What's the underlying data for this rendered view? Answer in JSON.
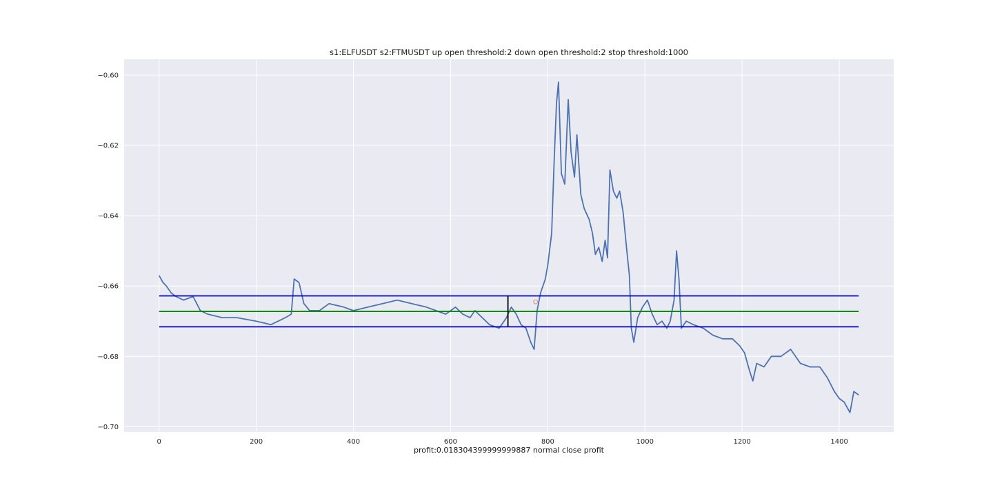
{
  "figure": {
    "background": "#ffffff",
    "axes_background": "#eaeaf2",
    "grid_color": "#ffffff"
  },
  "chart_data": {
    "type": "line",
    "title": "s1:ELFUSDT s2:FTMUSDT up open threshold:2 down open threshold:2 stop threshold:1000",
    "xlabel": "profit:0.018304399999999887 normal close profit",
    "ylabel": "",
    "xlim": [
      -72,
      1512
    ],
    "ylim": [
      -0.7015,
      -0.5955
    ],
    "grid": true,
    "xticks": [
      0,
      200,
      400,
      600,
      800,
      1000,
      1200,
      1400
    ],
    "xtick_labels": [
      "0",
      "200",
      "400",
      "600",
      "800",
      "1000",
      "1200",
      "1400"
    ],
    "yticks": [
      -0.7,
      -0.68,
      -0.66,
      -0.64,
      -0.62,
      -0.6
    ],
    "ytick_labels": [
      "−0.70",
      "−0.68",
      "−0.66",
      "−0.64",
      "−0.62",
      "−0.60"
    ],
    "series": [
      {
        "color": "#4c72b0",
        "points": [
          [
            0,
            -0.657
          ],
          [
            8,
            -0.659
          ],
          [
            15,
            -0.66
          ],
          [
            25,
            -0.662
          ],
          [
            35,
            -0.663
          ],
          [
            50,
            -0.664
          ],
          [
            70,
            -0.663
          ],
          [
            85,
            -0.667
          ],
          [
            100,
            -0.668
          ],
          [
            130,
            -0.669
          ],
          [
            160,
            -0.669
          ],
          [
            200,
            -0.67
          ],
          [
            230,
            -0.671
          ],
          [
            260,
            -0.669
          ],
          [
            272,
            -0.668
          ],
          [
            278,
            -0.658
          ],
          [
            288,
            -0.659
          ],
          [
            298,
            -0.665
          ],
          [
            310,
            -0.667
          ],
          [
            330,
            -0.667
          ],
          [
            350,
            -0.665
          ],
          [
            380,
            -0.666
          ],
          [
            400,
            -0.667
          ],
          [
            430,
            -0.666
          ],
          [
            460,
            -0.665
          ],
          [
            490,
            -0.664
          ],
          [
            520,
            -0.665
          ],
          [
            550,
            -0.666
          ],
          [
            570,
            -0.667
          ],
          [
            590,
            -0.668
          ],
          [
            610,
            -0.666
          ],
          [
            625,
            -0.668
          ],
          [
            640,
            -0.669
          ],
          [
            650,
            -0.667
          ],
          [
            665,
            -0.669
          ],
          [
            680,
            -0.671
          ],
          [
            700,
            -0.672
          ],
          [
            715,
            -0.669
          ],
          [
            725,
            -0.666
          ],
          [
            735,
            -0.668
          ],
          [
            745,
            -0.671
          ],
          [
            755,
            -0.672
          ],
          [
            765,
            -0.676
          ],
          [
            772,
            -0.678
          ],
          [
            778,
            -0.667
          ],
          [
            785,
            -0.662
          ],
          [
            795,
            -0.658
          ],
          [
            800,
            -0.654
          ],
          [
            808,
            -0.645
          ],
          [
            813,
            -0.625
          ],
          [
            818,
            -0.608
          ],
          [
            822,
            -0.602
          ],
          [
            828,
            -0.628
          ],
          [
            835,
            -0.631
          ],
          [
            842,
            -0.607
          ],
          [
            848,
            -0.622
          ],
          [
            855,
            -0.629
          ],
          [
            860,
            -0.617
          ],
          [
            868,
            -0.634
          ],
          [
            875,
            -0.638
          ],
          [
            885,
            -0.641
          ],
          [
            892,
            -0.645
          ],
          [
            898,
            -0.651
          ],
          [
            905,
            -0.649
          ],
          [
            912,
            -0.653
          ],
          [
            918,
            -0.647
          ],
          [
            923,
            -0.652
          ],
          [
            928,
            -0.627
          ],
          [
            935,
            -0.633
          ],
          [
            942,
            -0.635
          ],
          [
            948,
            -0.633
          ],
          [
            955,
            -0.639
          ],
          [
            962,
            -0.649
          ],
          [
            968,
            -0.657
          ],
          [
            972,
            -0.672
          ],
          [
            977,
            -0.676
          ],
          [
            985,
            -0.669
          ],
          [
            995,
            -0.666
          ],
          [
            1005,
            -0.664
          ],
          [
            1015,
            -0.668
          ],
          [
            1025,
            -0.671
          ],
          [
            1035,
            -0.67
          ],
          [
            1045,
            -0.672
          ],
          [
            1052,
            -0.67
          ],
          [
            1060,
            -0.664
          ],
          [
            1065,
            -0.65
          ],
          [
            1070,
            -0.658
          ],
          [
            1075,
            -0.672
          ],
          [
            1085,
            -0.67
          ],
          [
            1100,
            -0.671
          ],
          [
            1120,
            -0.672
          ],
          [
            1140,
            -0.674
          ],
          [
            1160,
            -0.675
          ],
          [
            1180,
            -0.675
          ],
          [
            1195,
            -0.677
          ],
          [
            1205,
            -0.679
          ],
          [
            1215,
            -0.684
          ],
          [
            1222,
            -0.687
          ],
          [
            1230,
            -0.682
          ],
          [
            1245,
            -0.683
          ],
          [
            1260,
            -0.68
          ],
          [
            1280,
            -0.68
          ],
          [
            1300,
            -0.678
          ],
          [
            1320,
            -0.682
          ],
          [
            1340,
            -0.683
          ],
          [
            1360,
            -0.683
          ],
          [
            1375,
            -0.686
          ],
          [
            1390,
            -0.69
          ],
          [
            1400,
            -0.692
          ],
          [
            1410,
            -0.693
          ],
          [
            1422,
            -0.696
          ],
          [
            1430,
            -0.69
          ],
          [
            1440,
            -0.691
          ]
        ]
      }
    ],
    "reference_lines": [
      {
        "y": -0.6628,
        "x_range": [
          0,
          1440
        ],
        "color": "#0000cc"
      },
      {
        "y": -0.6672,
        "x_range": [
          0,
          1440
        ],
        "color": "#008000"
      },
      {
        "y": -0.6716,
        "x_range": [
          0,
          1440
        ],
        "color": "#0000cc"
      }
    ],
    "vertical_markers": [
      {
        "x": 718,
        "y_range": [
          -0.6715,
          -0.6628
        ],
        "color": "#000000"
      }
    ],
    "point_markers": [
      {
        "x": 775,
        "y": -0.6645,
        "color": "#e88888"
      }
    ]
  }
}
